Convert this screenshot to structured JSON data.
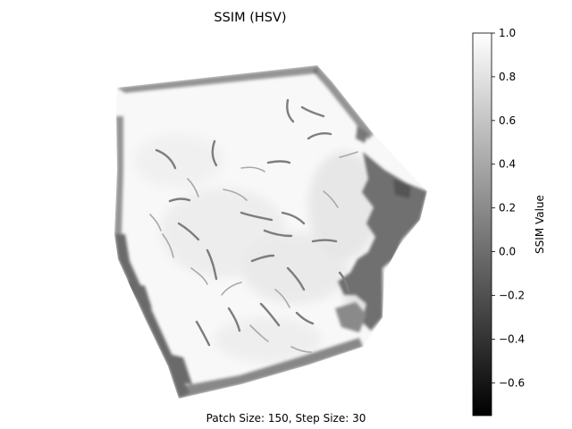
{
  "figure": {
    "title": "SSIM (HSV)",
    "caption": "Patch Size: 150, Step Size: 30"
  },
  "colorbar": {
    "label": "SSIM Value",
    "min": -0.75,
    "max": 1.0,
    "colormap": "gray",
    "ticks": [
      {
        "value": 1.0,
        "label": "1.0"
      },
      {
        "value": 0.8,
        "label": "0.8"
      },
      {
        "value": 0.6,
        "label": "0.6"
      },
      {
        "value": 0.4,
        "label": "0.4"
      },
      {
        "value": 0.2,
        "label": "0.2"
      },
      {
        "value": 0.0,
        "label": "0.0"
      },
      {
        "value": -0.2,
        "label": "−0.2"
      },
      {
        "value": -0.4,
        "label": "−0.4"
      },
      {
        "value": -0.6,
        "label": "−0.6"
      }
    ]
  },
  "colors": {
    "background": "#ffffff",
    "high_similarity": "#f7f7f7",
    "low_similarity": "#666666",
    "outline": "#000000"
  }
}
